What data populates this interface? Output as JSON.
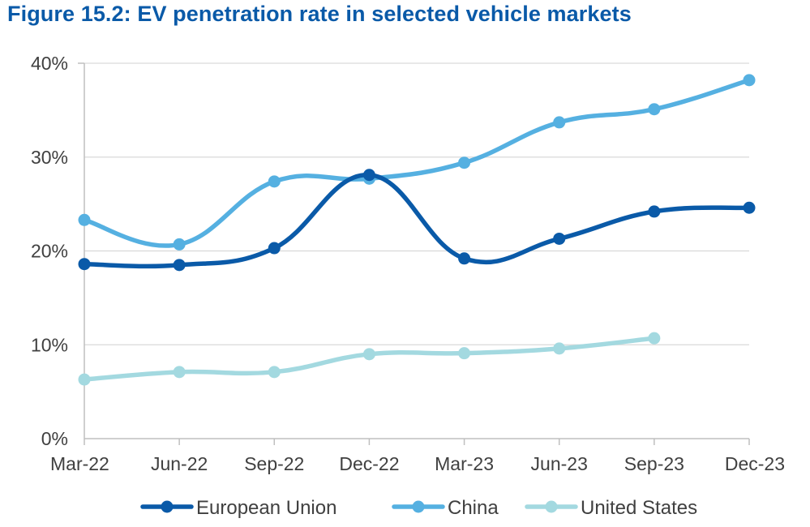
{
  "colors": {
    "title": "#0a5aa8",
    "grid": "#d9d9d9",
    "axis": "#bfbfbf",
    "tick_text": "#404040"
  },
  "chart_data": {
    "type": "line",
    "title": "Figure 15.2: EV penetration rate in selected vehicle markets",
    "xlabel": "",
    "ylabel": "",
    "categories": [
      "Mar-22",
      "Jun-22",
      "Sep-22",
      "Dec-22",
      "Mar-23",
      "Jun-23",
      "Sep-23",
      "Dec-23"
    ],
    "ylim": [
      0,
      40
    ],
    "yticks": [
      0,
      10,
      20,
      30,
      40
    ],
    "ytick_labels": [
      "0%",
      "10%",
      "20%",
      "30%",
      "40%"
    ],
    "grid": "horizontal",
    "smooth": true,
    "legend_position": "bottom",
    "series": [
      {
        "name": "European Union",
        "color": "#0a5aa8",
        "values": [
          18.6,
          18.5,
          20.3,
          28.1,
          19.2,
          21.3,
          24.2,
          24.6
        ]
      },
      {
        "name": "China",
        "color": "#55b0e1",
        "values": [
          23.3,
          20.7,
          27.4,
          27.7,
          29.4,
          33.7,
          35.1,
          38.2
        ]
      },
      {
        "name": "United States",
        "color": "#a3d9e0",
        "values": [
          6.3,
          7.1,
          7.1,
          9.0,
          9.1,
          9.6,
          10.7,
          null
        ]
      }
    ]
  }
}
